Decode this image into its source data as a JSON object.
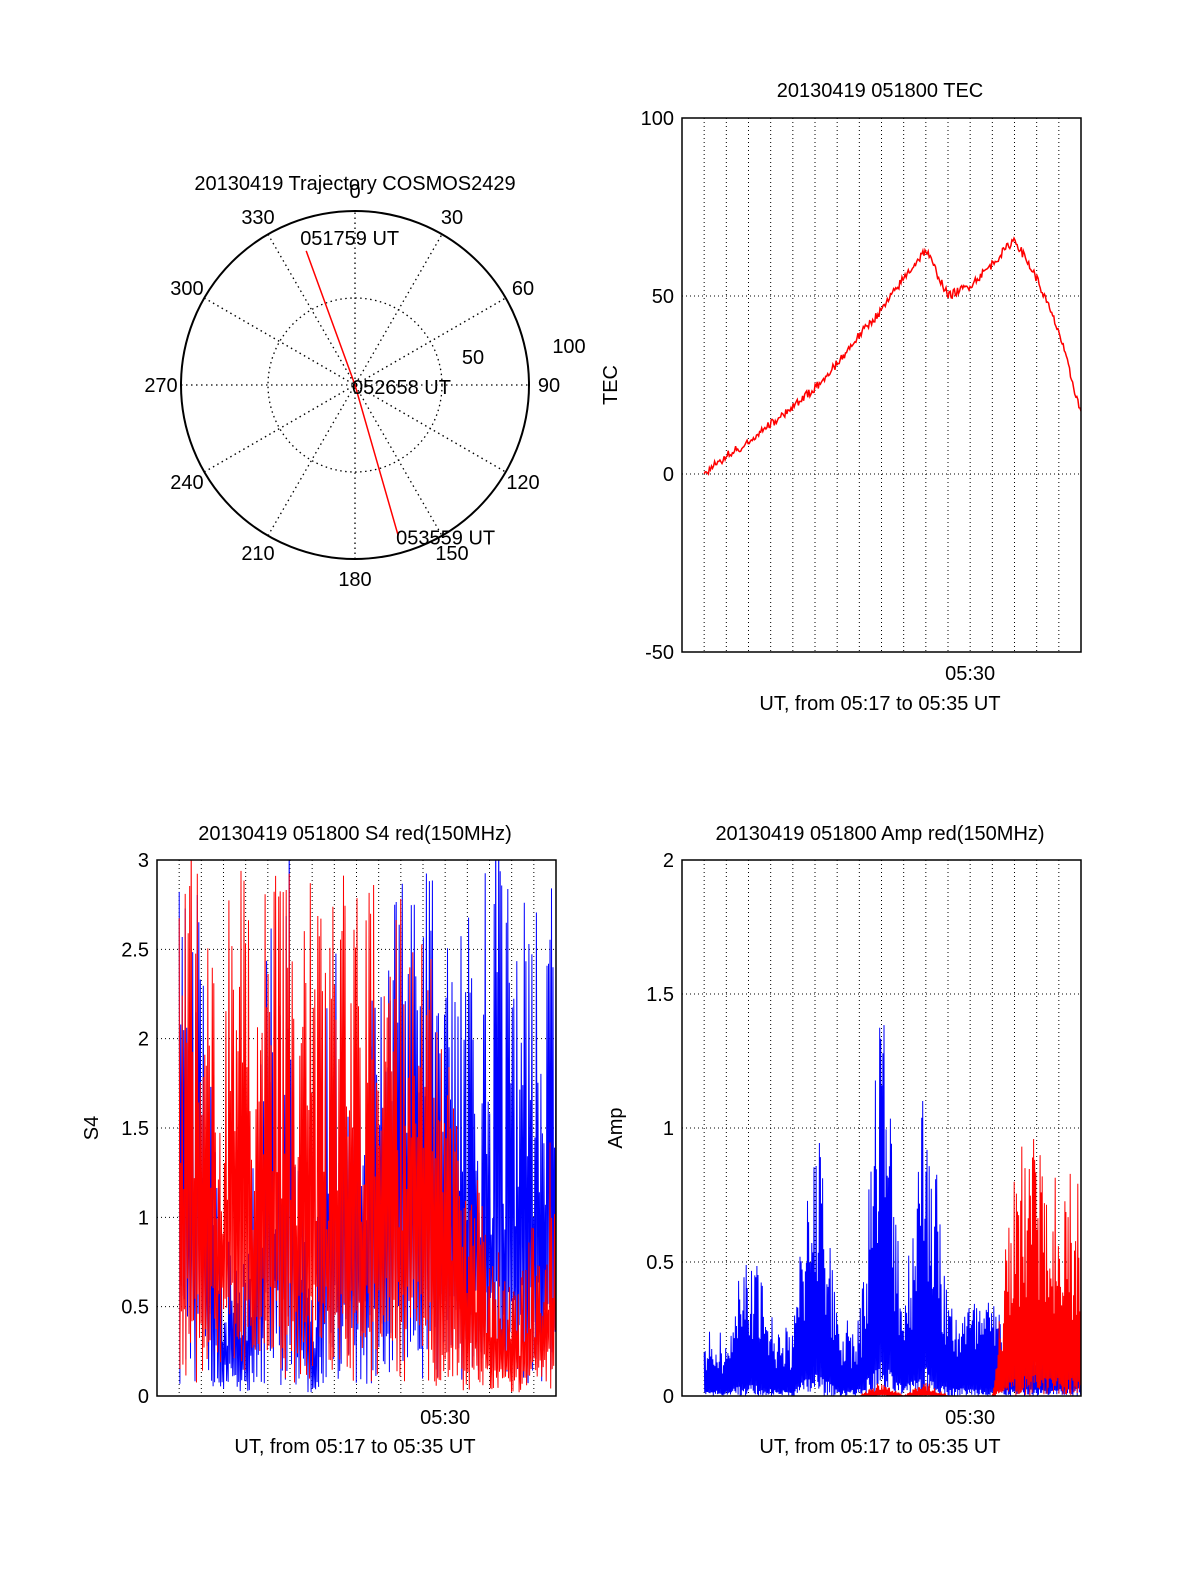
{
  "colors": {
    "red": "#ff0000",
    "blue": "#0000ff",
    "axis": "#000000",
    "grid": "#000000"
  },
  "chart_data": [
    {
      "id": "polar",
      "type": "polar",
      "title": "20130419 Trajectory COSMOS2429",
      "azimuth_labels": [
        "0",
        "30",
        "60",
        "90",
        "120",
        "150",
        "180",
        "210",
        "240",
        "270",
        "300",
        "330"
      ],
      "radial_ticks": [
        "50",
        "100"
      ],
      "radial_max": 100,
      "trajectory": {
        "start": {
          "label": "051759 UT",
          "azimuth": 340,
          "radial": 82
        },
        "mid": {
          "label": "052658 UT",
          "azimuth": 0,
          "radial": 0
        },
        "end": {
          "label": "053559 UT",
          "azimuth": 164,
          "radial": 90
        }
      }
    },
    {
      "id": "tec",
      "type": "line",
      "title": "20130419 051800 TEC",
      "xlabel": "UT, from 05:17 to 05:35 UT",
      "ylabel": "TEC",
      "xlim": [
        "05:17",
        "05:35"
      ],
      "x_tick_labels": [
        "05:30"
      ],
      "ylim": [
        -50,
        100
      ],
      "y_tick_labels": [
        "-50",
        "0",
        "50",
        "100"
      ],
      "series": [
        {
          "color": "red",
          "x": [
            "05:18",
            "05:19",
            "05:20",
            "05:21",
            "05:22",
            "05:23",
            "05:24",
            "05:25",
            "05:26",
            "05:27",
            "05:28",
            "05:29",
            "05:30",
            "05:31",
            "05:32",
            "05:33",
            "05:34",
            "05:35"
          ],
          "values": [
            0,
            5,
            9,
            14,
            19,
            24,
            31,
            39,
            46,
            55,
            63,
            50,
            53,
            59,
            66,
            55,
            40,
            17
          ]
        }
      ]
    },
    {
      "id": "s4",
      "type": "line",
      "title": "20130419 051800 S4 red(150MHz)",
      "xlabel": "UT, from 05:17 to 05:35 UT",
      "ylabel": "S4",
      "xlim": [
        "05:17",
        "05:35"
      ],
      "x_tick_labels": [
        "05:30"
      ],
      "ylim": [
        0,
        3
      ],
      "y_tick_labels": [
        "0",
        "0.5",
        "1",
        "1.5",
        "2",
        "2.5",
        "3"
      ],
      "series": [
        {
          "color": "blue",
          "x": [
            "05:18",
            "05:19",
            "05:20",
            "05:21",
            "05:22",
            "05:23",
            "05:24",
            "05:25",
            "05:26",
            "05:27",
            "05:28",
            "05:29",
            "05:30",
            "05:31",
            "05:32",
            "05:33",
            "05:34",
            "05:35"
          ],
          "values": [
            3,
            3,
            0.9,
            0.8,
            3,
            3,
            0.6,
            3,
            2.5,
            2.3,
            3,
            3,
            2.8,
            2.8,
            3,
            3,
            3,
            3
          ]
        },
        {
          "color": "red",
          "x": [
            "05:18",
            "05:19",
            "05:20",
            "05:21",
            "05:22",
            "05:23",
            "05:24",
            "05:25",
            "05:26",
            "05:27",
            "05:28",
            "05:29",
            "05:30",
            "05:31",
            "05:32",
            "05:33",
            "05:34",
            "05:35"
          ],
          "values": [
            3,
            3,
            3,
            3,
            3,
            3,
            3,
            3,
            3,
            3,
            3,
            3,
            2.0,
            1.5,
            1.0,
            0.6,
            1.0,
            1.7
          ]
        }
      ]
    },
    {
      "id": "amp",
      "type": "line",
      "title": "20130419 051800 Amp red(150MHz)",
      "xlabel": "UT, from 05:17 to 05:35 UT",
      "ylabel": "Amp",
      "xlim": [
        "05:17",
        "05:35"
      ],
      "x_tick_labels": [
        "05:30"
      ],
      "ylim": [
        0,
        2
      ],
      "y_tick_labels": [
        "0",
        "0.5",
        "1",
        "1.5",
        "2"
      ],
      "series": [
        {
          "color": "blue",
          "x": [
            "05:18",
            "05:19",
            "05:20",
            "05:21",
            "05:22",
            "05:23",
            "05:24",
            "05:25",
            "05:26",
            "05:27",
            "05:28",
            "05:29",
            "05:30",
            "05:31",
            "05:32",
            "05:33",
            "05:34",
            "05:35"
          ],
          "values": [
            0.2,
            0.2,
            0.5,
            0.25,
            0.2,
            1.0,
            0.25,
            0.25,
            1.35,
            0.3,
            1.1,
            0.3,
            0.3,
            0.3,
            0.25,
            0.25,
            0.25,
            0.3
          ]
        },
        {
          "color": "red",
          "x": [
            "05:18",
            "05:19",
            "05:20",
            "05:21",
            "05:22",
            "05:23",
            "05:24",
            "05:25",
            "05:26",
            "05:27",
            "05:28",
            "05:29",
            "05:30",
            "05:31",
            "05:32",
            "05:33",
            "05:34",
            "05:35"
          ],
          "values": [
            0,
            0,
            0,
            0,
            0,
            0,
            0,
            0,
            0.05,
            0,
            0.05,
            0,
            0,
            0,
            0.8,
            0.8,
            0.7,
            0.7
          ]
        }
      ]
    }
  ]
}
